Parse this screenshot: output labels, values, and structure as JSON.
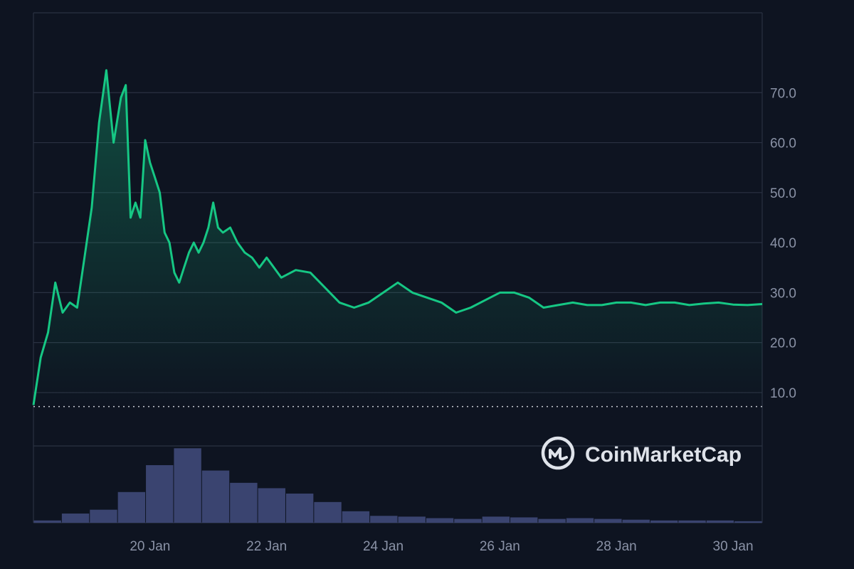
{
  "brand": {
    "name": "CoinMarketCap",
    "icon": "coinmarketcap-logo-icon"
  },
  "colors": {
    "background": "#0e1421",
    "grid": "#2a3142",
    "price_line": "#16c784",
    "volume_bar": "#3a4470",
    "tick_text": "#8a92a6",
    "reference_line": "#c8ccd4"
  },
  "chart_data": [
    {
      "type": "area",
      "title": "",
      "xlabel": "",
      "ylabel": "",
      "ylim": [
        7,
        80
      ],
      "yticks": [
        "10.0",
        "20.0",
        "30.0",
        "40.0",
        "50.0",
        "60.0",
        "70.0"
      ],
      "ytick_values": [
        10,
        20,
        30,
        40,
        50,
        60,
        70
      ],
      "xlim": [
        "2025-01-18 00:00",
        "2025-01-30 12:00"
      ],
      "xticks": [
        "20 Jan",
        "22 Jan",
        "24 Jan",
        "26 Jan",
        "28 Jan",
        "30 Jan"
      ],
      "xtick_values": [
        "2025-01-20 00:00",
        "2025-01-22 00:00",
        "2025-01-24 00:00",
        "2025-01-26 00:00",
        "2025-01-28 00:00",
        "2025-01-30 00:00"
      ],
      "reference_line": {
        "y": 7.2,
        "style": "dotted"
      },
      "grid": true,
      "legend": "none",
      "x": [
        "2025-01-18 00:00",
        "2025-01-18 03:00",
        "2025-01-18 06:00",
        "2025-01-18 09:00",
        "2025-01-18 12:00",
        "2025-01-18 15:00",
        "2025-01-18 18:00",
        "2025-01-18 21:00",
        "2025-01-19 00:00",
        "2025-01-19 03:00",
        "2025-01-19 06:00",
        "2025-01-19 09:00",
        "2025-01-19 12:00",
        "2025-01-19 14:00",
        "2025-01-19 16:00",
        "2025-01-19 18:00",
        "2025-01-19 20:00",
        "2025-01-19 22:00",
        "2025-01-20 00:00",
        "2025-01-20 02:00",
        "2025-01-20 04:00",
        "2025-01-20 06:00",
        "2025-01-20 08:00",
        "2025-01-20 10:00",
        "2025-01-20 12:00",
        "2025-01-20 14:00",
        "2025-01-20 16:00",
        "2025-01-20 18:00",
        "2025-01-20 20:00",
        "2025-01-20 22:00",
        "2025-01-21 00:00",
        "2025-01-21 02:00",
        "2025-01-21 04:00",
        "2025-01-21 06:00",
        "2025-01-21 09:00",
        "2025-01-21 12:00",
        "2025-01-21 15:00",
        "2025-01-21 18:00",
        "2025-01-21 21:00",
        "2025-01-22 00:00",
        "2025-01-22 06:00",
        "2025-01-22 12:00",
        "2025-01-22 18:00",
        "2025-01-23 00:00",
        "2025-01-23 06:00",
        "2025-01-23 12:00",
        "2025-01-23 18:00",
        "2025-01-24 00:00",
        "2025-01-24 06:00",
        "2025-01-24 12:00",
        "2025-01-24 18:00",
        "2025-01-25 00:00",
        "2025-01-25 06:00",
        "2025-01-25 12:00",
        "2025-01-25 18:00",
        "2025-01-26 00:00",
        "2025-01-26 06:00",
        "2025-01-26 12:00",
        "2025-01-26 18:00",
        "2025-01-27 00:00",
        "2025-01-27 06:00",
        "2025-01-27 12:00",
        "2025-01-27 18:00",
        "2025-01-28 00:00",
        "2025-01-28 06:00",
        "2025-01-28 12:00",
        "2025-01-28 18:00",
        "2025-01-29 00:00",
        "2025-01-29 06:00",
        "2025-01-29 12:00",
        "2025-01-29 18:00",
        "2025-01-30 00:00",
        "2025-01-30 06:00",
        "2025-01-30 12:00"
      ],
      "series": [
        {
          "values": [
            7.5,
            17.0,
            22.0,
            32.0,
            26.0,
            28.0,
            27.0,
            37.0,
            47.0,
            64.0,
            74.5,
            60.0,
            69.0,
            71.5,
            45.0,
            48.0,
            45.0,
            60.5,
            56.0,
            53.0,
            50.0,
            42.0,
            40.0,
            34.0,
            32.0,
            35.0,
            38.0,
            40.0,
            38.0,
            40.0,
            43.0,
            48.0,
            43.0,
            42.0,
            43.0,
            40.0,
            38.0,
            37.0,
            35.0,
            37.0,
            33.0,
            34.5,
            34.0,
            31.0,
            28.0,
            27.0,
            28.0,
            30.0,
            32.0,
            30.0,
            29.0,
            28.0,
            26.0,
            27.0,
            28.5,
            30.0,
            30.0,
            29.0,
            27.0,
            27.5,
            28.0,
            27.5,
            27.5,
            28.0,
            28.0,
            27.5,
            28.0,
            28.0,
            27.5,
            27.8,
            28.0,
            27.6,
            27.5,
            27.7
          ]
        }
      ]
    },
    {
      "type": "bar",
      "title": "",
      "ylabel": "",
      "ylim": [
        0,
        100
      ],
      "x": [
        "2025-01-18 00:00",
        "2025-01-18 12:00",
        "2025-01-19 00:00",
        "2025-01-19 12:00",
        "2025-01-20 00:00",
        "2025-01-20 12:00",
        "2025-01-21 00:00",
        "2025-01-21 12:00",
        "2025-01-22 00:00",
        "2025-01-22 12:00",
        "2025-01-23 00:00",
        "2025-01-23 12:00",
        "2025-01-24 00:00",
        "2025-01-24 12:00",
        "2025-01-25 00:00",
        "2025-01-25 12:00",
        "2025-01-26 00:00",
        "2025-01-26 12:00",
        "2025-01-27 00:00",
        "2025-01-27 12:00",
        "2025-01-28 00:00",
        "2025-01-28 12:00",
        "2025-01-29 00:00",
        "2025-01-29 12:00",
        "2025-01-30 00:00",
        "2025-01-30 12:00"
      ],
      "series": [
        {
          "values": [
            3,
            12,
            17,
            40,
            75,
            97,
            68,
            52,
            45,
            38,
            27,
            15,
            9,
            8,
            6,
            5,
            8,
            7,
            5,
            6,
            5,
            4,
            3,
            3,
            3,
            2
          ]
        }
      ]
    }
  ]
}
